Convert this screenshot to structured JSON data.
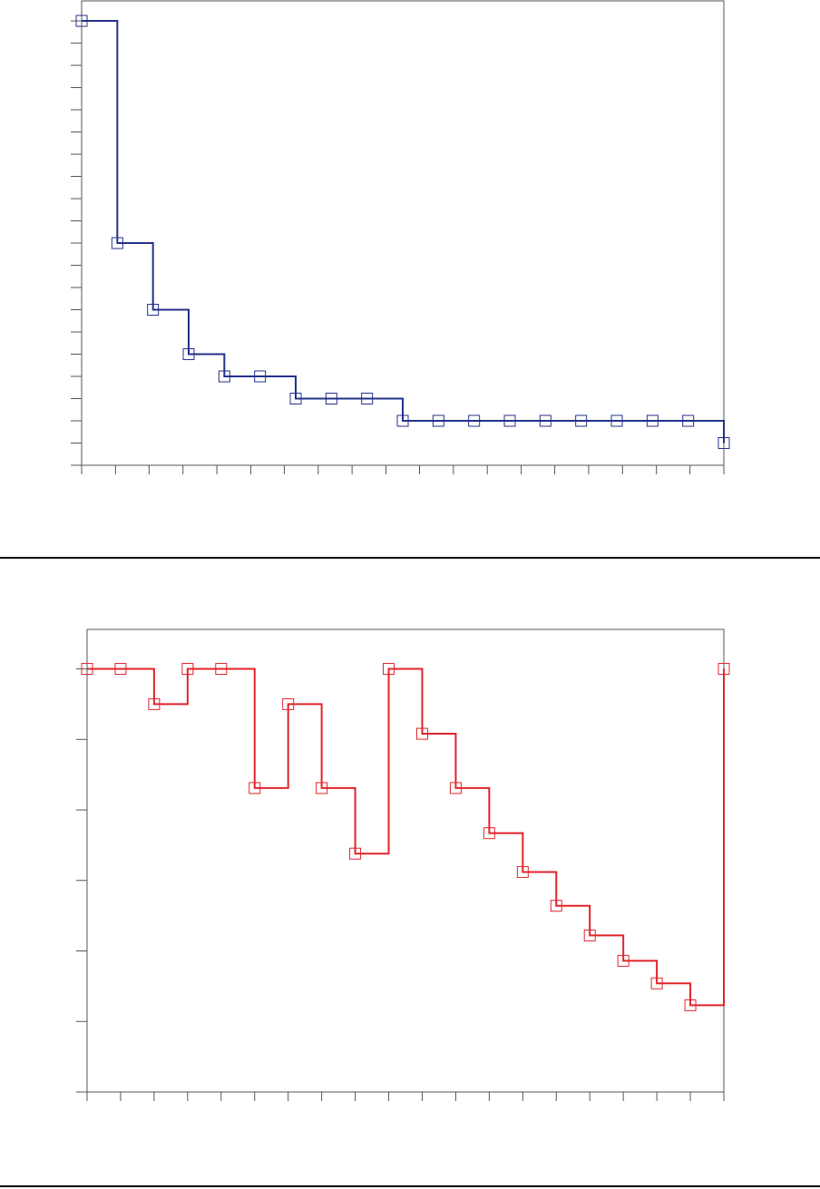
{
  "chart_data": [
    {
      "type": "line",
      "step": "post",
      "color": "#23318a",
      "marker": "square",
      "x": [
        0,
        1,
        2,
        3,
        4,
        5,
        6,
        7,
        8,
        9,
        10,
        11,
        12,
        13,
        14,
        15,
        16,
        17,
        18
      ],
      "values": [
        20,
        10,
        7,
        5,
        4,
        4,
        3,
        3,
        3,
        2,
        2,
        2,
        2,
        2,
        2,
        2,
        2,
        2,
        1
      ],
      "xlim": [
        0,
        18
      ],
      "xticks": [
        0,
        0.95,
        1.89,
        2.84,
        3.79,
        4.74,
        5.68,
        6.63,
        7.58,
        8.53,
        9.47,
        10.42,
        11.37,
        12.32,
        13.26,
        14.21,
        15.16,
        16.11,
        17.05,
        18
      ],
      "ylim": [
        0,
        20.9
      ],
      "yticks": [
        0,
        1,
        2,
        3,
        4,
        5,
        6,
        7,
        8,
        9,
        10,
        11,
        12,
        13,
        14,
        15,
        16,
        17,
        18,
        19,
        20
      ]
    },
    {
      "type": "line",
      "step": "post",
      "color": "#e0242b",
      "marker": "square",
      "x": [
        0,
        1,
        2,
        3,
        4,
        5,
        6,
        7,
        8,
        9,
        10,
        11,
        12,
        13,
        14,
        15,
        16,
        17,
        18,
        19
      ],
      "values": [
        6,
        6,
        5.5,
        6,
        6,
        4.31,
        5.5,
        4.31,
        3.38,
        6,
        5.08,
        4.31,
        3.67,
        3.12,
        2.64,
        2.22,
        1.86,
        1.54,
        1.23,
        6
      ],
      "xlim": [
        0,
        19
      ],
      "xticks": [
        0,
        1,
        2,
        3,
        4,
        5,
        6,
        7,
        8,
        9,
        10,
        11,
        12,
        13,
        14,
        15,
        16,
        17,
        18,
        19
      ],
      "ylim": [
        0,
        6.56
      ],
      "yticks": [
        0,
        1,
        2,
        3,
        4,
        5,
        6
      ]
    }
  ]
}
